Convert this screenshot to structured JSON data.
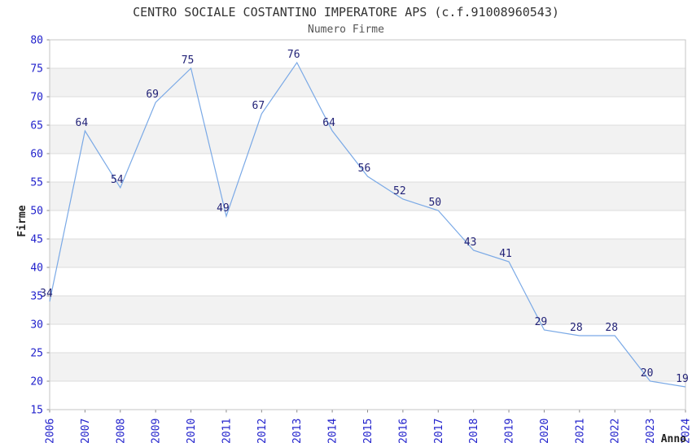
{
  "header": {
    "title": "CENTRO SOCIALE COSTANTINO IMPERATORE APS (c.f.91008960543)",
    "subtitle": "Numero Firme"
  },
  "chart_data": {
    "type": "line",
    "title": "CENTRO SOCIALE COSTANTINO IMPERATORE APS (c.f.91008960543)",
    "subtitle": "Numero Firme",
    "xlabel": "Anno",
    "ylabel": "Firme",
    "x": [
      2006,
      2007,
      2008,
      2009,
      2010,
      2011,
      2012,
      2013,
      2014,
      2015,
      2016,
      2017,
      2018,
      2019,
      2020,
      2021,
      2022,
      2023,
      2024
    ],
    "values": [
      34,
      64,
      54,
      69,
      75,
      49,
      67,
      76,
      64,
      56,
      52,
      50,
      43,
      41,
      29,
      28,
      28,
      20,
      19
    ],
    "ylim": [
      15,
      80
    ],
    "yticks": [
      15,
      20,
      25,
      30,
      35,
      40,
      45,
      50,
      55,
      60,
      65,
      70,
      75,
      80
    ],
    "grid": "horizontal",
    "banding": "alternating-gray-white",
    "legend": "none",
    "colors": {
      "line": "#7AA9E6",
      "tick_label": "#2222CC",
      "data_label": "#222277",
      "band": "#F2F2F2",
      "gridline": "#DCDCDC",
      "border": "#C6C6C6",
      "tick_mark": "#888888",
      "title": "#333333",
      "subtitle": "#555555",
      "axis_title": "#222222",
      "background": "#FFFFFF"
    }
  }
}
